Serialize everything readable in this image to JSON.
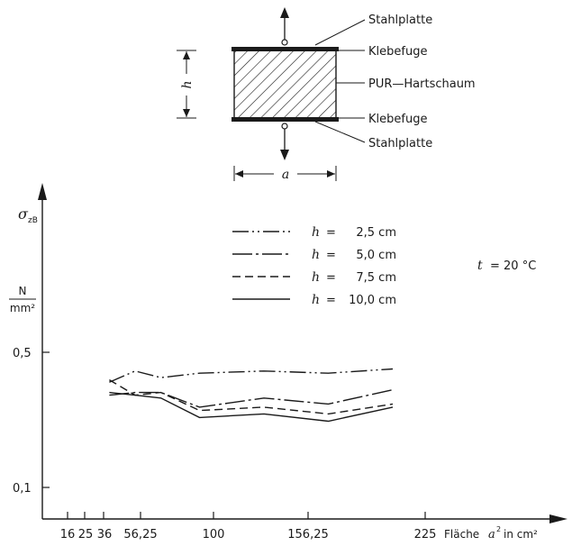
{
  "diagram": {
    "labels": {
      "stahlplatte_top": "Stahlplatte",
      "klebefuge_top": "Klebefuge",
      "pur": "PUR—Hartschaum",
      "klebefuge_bottom": "Klebefuge",
      "stahlplatte_bottom": "Stahlplatte",
      "h": "h",
      "a": "a"
    }
  },
  "chart_data": {
    "type": "line",
    "ylabel_symbol": "σ",
    "ylabel_sub": "zB",
    "yunit_num": "N",
    "yunit_den": "mm²",
    "xlabel_prefix": "Fläche",
    "xlabel_var": "a",
    "xlabel_sup": "2",
    "xlabel_suffix": "in cm²",
    "x_ticks": [
      "16",
      "25",
      "36",
      "56,25",
      "100",
      "156,25",
      "225"
    ],
    "x": [
      16,
      25,
      36,
      56.25,
      100,
      156.25,
      225
    ],
    "y_ticks": [
      "0,5",
      "0,1"
    ],
    "temperature": {
      "var": "t",
      "text": "= 20 °C"
    },
    "series": [
      {
        "name_var": "h",
        "name_eq": "=",
        "name_val": "2,5 cm",
        "style": "dash-dot-dot",
        "values": [
          0.35,
          0.4,
          0.37,
          0.39,
          0.4,
          0.39,
          0.41
        ]
      },
      {
        "name_var": "h",
        "name_eq": "=",
        "name_val": "5,0 cm",
        "style": "dash-dot",
        "values": [
          0.3,
          0.31,
          0.31,
          0.26,
          0.29,
          0.27,
          0.32
        ]
      },
      {
        "name_var": "h",
        "name_eq": "=",
        "name_val": "7,5 cm",
        "style": "dashed",
        "values": [
          0.36,
          0.3,
          0.31,
          0.25,
          0.26,
          0.24,
          0.27
        ]
      },
      {
        "name_var": "h",
        "name_eq": "=",
        "name_val": "10,0 cm",
        "style": "solid",
        "values": [
          0.31,
          0.3,
          0.29,
          0.23,
          0.24,
          0.22,
          0.26
        ]
      }
    ]
  }
}
